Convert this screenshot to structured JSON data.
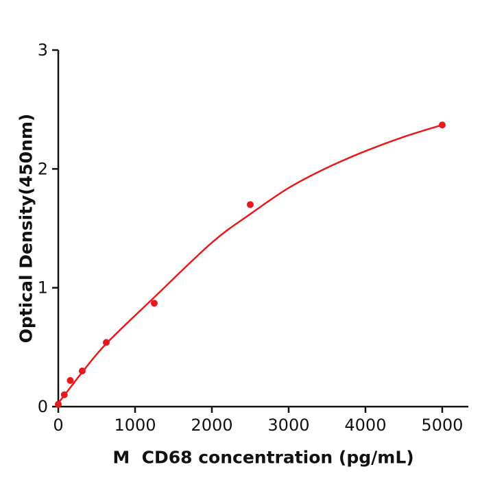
{
  "chart_data": {
    "type": "scatter",
    "title": "",
    "xlabel": "M  CD68 concentration (pg/mL)",
    "ylabel": "Optical Density(450nm)",
    "xlim": [
      0,
      5340
    ],
    "ylim": [
      0,
      3
    ],
    "x_ticks": [
      0,
      1000,
      2000,
      3000,
      4000,
      5000
    ],
    "y_ticks": [
      0,
      1,
      2,
      3
    ],
    "grid": false,
    "legend": "none",
    "points": [
      [
        0,
        0.02
      ],
      [
        78,
        0.1
      ],
      [
        156,
        0.22
      ],
      [
        312,
        0.3
      ],
      [
        625,
        0.54
      ],
      [
        1250,
        0.87
      ],
      [
        2500,
        1.7
      ],
      [
        5000,
        2.37
      ]
    ],
    "fit_curve": [
      [
        0,
        0.03
      ],
      [
        156,
        0.16
      ],
      [
        312,
        0.29
      ],
      [
        625,
        0.53
      ],
      [
        1250,
        0.92
      ],
      [
        2000,
        1.38
      ],
      [
        2500,
        1.62
      ],
      [
        3000,
        1.84
      ],
      [
        3500,
        2.01
      ],
      [
        4000,
        2.15
      ],
      [
        4500,
        2.27
      ],
      [
        5000,
        2.37
      ]
    ],
    "colors": {
      "curve": "#e41a1c",
      "points": "#e41a1c",
      "axis": "#111111",
      "tick_text": "#111111",
      "background": "#ffffff"
    }
  }
}
